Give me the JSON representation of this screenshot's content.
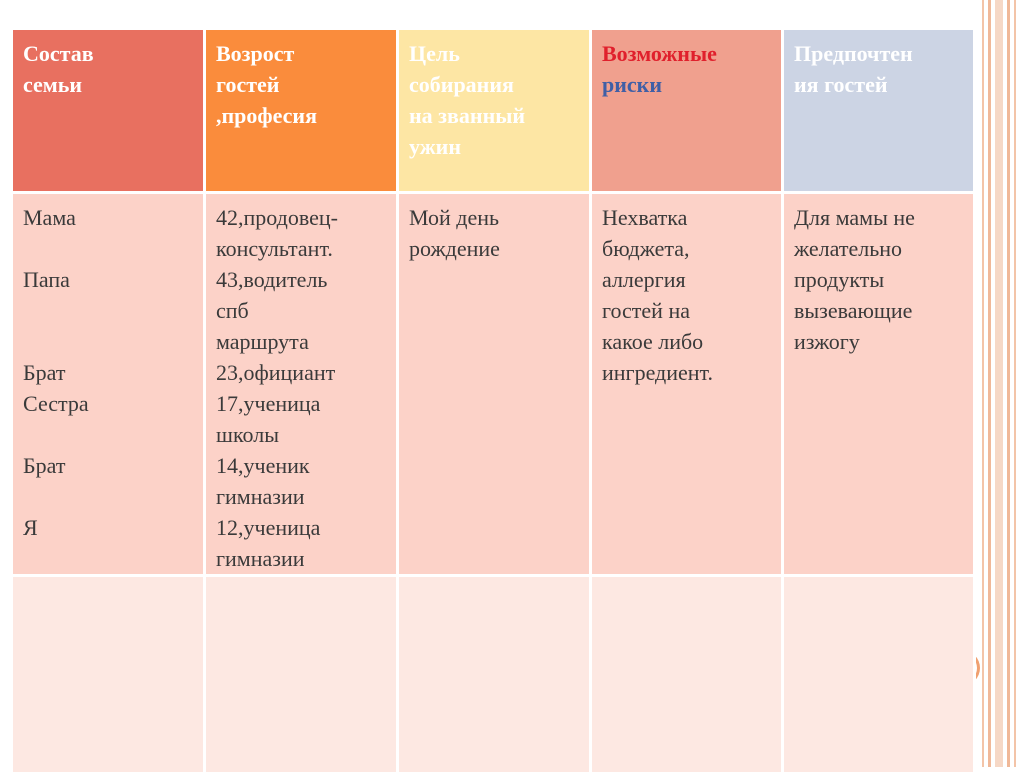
{
  "headers": {
    "family": [
      "Состав",
      "семьи"
    ],
    "age": [
      "Возрост",
      "гостей",
      ",професия"
    ],
    "goal": [
      "Цель",
      "собирания",
      "на званный",
      "ужин"
    ],
    "risks_word1": "Возможные",
    "risks_word2": "риски",
    "prefs": [
      "Предпочтен",
      "ия гостей"
    ]
  },
  "colors": {
    "family_header": "#e87060",
    "age_header": "#fa8c3c",
    "goal_header": "#fde6a4",
    "risks_header": "#f0a08e",
    "prefs_header": "#ccd4e4",
    "risk_red": "#e0202c",
    "risk_blue": "#3f5fa6",
    "row_fill": "#fcd2c8",
    "empty_row_fill": "#fde8e2"
  },
  "rows": {
    "family": [
      "Мама",
      "Папа",
      "Брат",
      "Сестра",
      "Брат",
      "Я"
    ],
    "ages": [
      "42,продовец-",
      "консультант.",
      "43,водитель",
      "спб",
      "маршрута",
      "23,официант",
      "17,ученица",
      "школы",
      "14,ученик",
      "гимназии",
      "12,ученица",
      "гимназии"
    ],
    "goal": [
      "Мой день",
      "рождение"
    ],
    "risks": [
      "Нехватка",
      "бюджета,",
      "аллергия",
      "гостей на",
      "какое либо",
      "ингредиент."
    ],
    "prefs": [
      "Для мамы не",
      "желательно",
      "продукты",
      "вызевающие",
      "изжогу"
    ]
  }
}
